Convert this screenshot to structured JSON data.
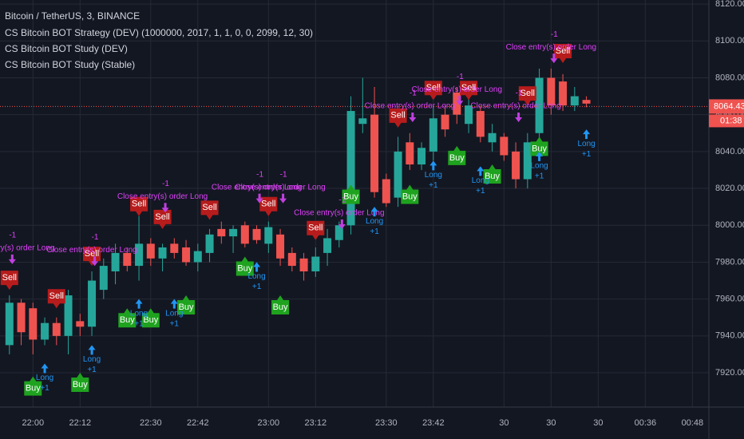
{
  "chart_data": {
    "type": "candlestick",
    "symbol": "Bitcoin / TetherUS, 3, BINANCE",
    "indicators": [
      "CS Bitcoin BOT Strategy (DEV) (1000000, 2017, 1, 1, 0, 0, 2099, 12, 30)",
      "CS Bitcoin BOT Study (DEV)",
      "CS Bitcoin BOT Study (Stable)"
    ],
    "x": [
      0,
      1,
      2,
      3,
      4,
      5,
      6,
      7,
      8,
      9,
      10,
      11,
      12,
      13,
      14,
      15,
      16,
      17,
      18,
      19,
      20,
      21,
      22,
      23,
      24,
      25,
      26,
      27,
      28,
      29,
      30,
      31,
      32,
      33,
      34,
      35,
      36,
      37,
      38,
      39,
      40,
      41,
      42,
      43,
      44,
      45,
      46,
      47,
      48,
      49
    ],
    "open": [
      7935,
      7958,
      7955,
      7938,
      7947,
      7940,
      7948,
      7945,
      7965,
      7975,
      7985,
      7978,
      7990,
      7982,
      7990,
      7988,
      7980,
      7985,
      7998,
      7994,
      8000,
      7998,
      7990,
      7995,
      7985,
      7982,
      7975,
      7985,
      7992,
      8000,
      8055,
      8060,
      8025,
      8015,
      8045,
      8033,
      8040,
      8060,
      8072,
      8055,
      8062,
      8045,
      8048,
      8040,
      8025,
      8050,
      8080,
      8078,
      8065,
      8068
    ],
    "high": [
      7962,
      7960,
      7958,
      7950,
      7950,
      7965,
      7952,
      7975,
      7982,
      7990,
      7988,
      8005,
      7993,
      7990,
      7993,
      7992,
      7990,
      7998,
      8002,
      8000,
      8002,
      8000,
      8002,
      7998,
      7988,
      7985,
      7988,
      7998,
      8002,
      8070,
      8080,
      8075,
      8028,
      8048,
      8050,
      8045,
      8065,
      8065,
      8075,
      8070,
      8065,
      8055,
      8050,
      8045,
      8050,
      8085,
      8085,
      8082,
      8075,
      8070
    ],
    "low": [
      7930,
      7935,
      7930,
      7935,
      7935,
      7930,
      7940,
      7940,
      7960,
      7968,
      7975,
      7970,
      7978,
      7975,
      7982,
      7978,
      7975,
      7980,
      7990,
      7985,
      7988,
      7990,
      7985,
      7978,
      7975,
      7970,
      7972,
      7978,
      7988,
      7995,
      8050,
      8015,
      8010,
      8010,
      8030,
      8030,
      8035,
      8048,
      8055,
      8050,
      8045,
      8040,
      8035,
      8020,
      8020,
      8045,
      8060,
      8062,
      8062,
      8064
    ],
    "close": [
      7958,
      7942,
      7938,
      7947,
      7940,
      7962,
      7945,
      7970,
      7978,
      7985,
      7978,
      7990,
      7982,
      7988,
      7985,
      7980,
      7986,
      7995,
      7994,
      7998,
      7990,
      7992,
      7999,
      7982,
      7978,
      7975,
      7983,
      7993,
      8000,
      8062,
      8058,
      8018,
      8012,
      8040,
      8033,
      8042,
      8058,
      8052,
      8060,
      8065,
      8048,
      8050,
      8038,
      8025,
      8045,
      8080,
      8065,
      8065,
      8070,
      8066
    ],
    "up_color": "#26a69a",
    "down_color": "#ef5350",
    "xlim": [
      -0.8,
      59.4
    ],
    "xticks": [
      {
        "value": 2,
        "label": "22:00"
      },
      {
        "value": 6,
        "label": "22:12"
      },
      {
        "value": 12,
        "label": "22:30"
      },
      {
        "value": 16,
        "label": "22:42"
      },
      {
        "value": 22,
        "label": "23:00"
      },
      {
        "value": 26,
        "label": "23:12"
      },
      {
        "value": 32,
        "label": "23:30"
      },
      {
        "value": 36,
        "label": "23:42"
      },
      {
        "value": 42,
        "label": "30"
      },
      {
        "value": 46,
        "label": "30"
      },
      {
        "value": 50,
        "label": "30"
      },
      {
        "value": 54,
        "label": "00:36"
      },
      {
        "value": 58,
        "label": "00:48"
      }
    ],
    "ylim": [
      7901.4,
      8122.2
    ],
    "yticks": [
      {
        "value": 7920,
        "label": "7920.00"
      },
      {
        "value": 7940,
        "label": "7940.00"
      },
      {
        "value": 7960,
        "label": "7960.00"
      },
      {
        "value": 7980,
        "label": "7980.00"
      },
      {
        "value": 8000,
        "label": "8000.00"
      },
      {
        "value": 8020,
        "label": "8020.00"
      },
      {
        "value": 8040,
        "label": "8040.00"
      },
      {
        "value": 8060,
        "label": "8060.00"
      },
      {
        "value": 8080,
        "label": "8080.00"
      },
      {
        "value": 8100,
        "label": "8100.00"
      },
      {
        "value": 8120,
        "label": "8120.00"
      }
    ],
    "grid": true,
    "last_price": 8064.43,
    "countdown": "01:38",
    "texts": {
      "sell": "Sell",
      "buy": "Buy",
      "close": "Close entry(s) order Long",
      "long": "Long",
      "minus": "-1",
      "plus": "+1"
    },
    "sells": [
      {
        "x": 0,
        "y": 7965
      },
      {
        "x": 4,
        "y": 7955
      },
      {
        "x": 7,
        "y": 7978
      },
      {
        "x": 11,
        "y": 8005
      },
      {
        "x": 13,
        "y": 7998
      },
      {
        "x": 17,
        "y": 8003
      },
      {
        "x": 22,
        "y": 8005
      },
      {
        "x": 26,
        "y": 7992
      },
      {
        "x": 33,
        "y": 8053
      },
      {
        "x": 36,
        "y": 8068
      },
      {
        "x": 39,
        "y": 8068
      },
      {
        "x": 44,
        "y": 8065
      },
      {
        "x": 47,
        "y": 8088
      }
    ],
    "buys": [
      {
        "x": 2,
        "y": 7918
      },
      {
        "x": 6,
        "y": 7920
      },
      {
        "x": 10,
        "y": 7955
      },
      {
        "x": 12,
        "y": 7955
      },
      {
        "x": 15,
        "y": 7962
      },
      {
        "x": 20,
        "y": 7983
      },
      {
        "x": 23,
        "y": 7962
      },
      {
        "x": 29,
        "y": 8022
      },
      {
        "x": 34,
        "y": 8022
      },
      {
        "x": 38,
        "y": 8043
      },
      {
        "x": 41,
        "y": 8033
      },
      {
        "x": 45,
        "y": 8048
      }
    ],
    "closes": [
      {
        "x": 0,
        "y": 7985
      },
      {
        "x": 7,
        "y": 7984
      },
      {
        "x": 13,
        "y": 8013
      },
      {
        "x": 21,
        "y": 8018
      },
      {
        "x": 23,
        "y": 8018
      },
      {
        "x": 28,
        "y": 8004
      },
      {
        "x": 34,
        "y": 8062
      },
      {
        "x": 38,
        "y": 8071
      },
      {
        "x": 43,
        "y": 8062
      },
      {
        "x": 46,
        "y": 8094
      }
    ],
    "longs": [
      {
        "x": 3,
        "y": 7925
      },
      {
        "x": 7,
        "y": 7935
      },
      {
        "x": 11,
        "y": 7960
      },
      {
        "x": 14,
        "y": 7960
      },
      {
        "x": 21,
        "y": 7980
      },
      {
        "x": 31,
        "y": 8010
      },
      {
        "x": 36,
        "y": 8035
      },
      {
        "x": 40,
        "y": 8032
      },
      {
        "x": 45,
        "y": 8040
      },
      {
        "x": 49,
        "y": 8052
      }
    ]
  }
}
